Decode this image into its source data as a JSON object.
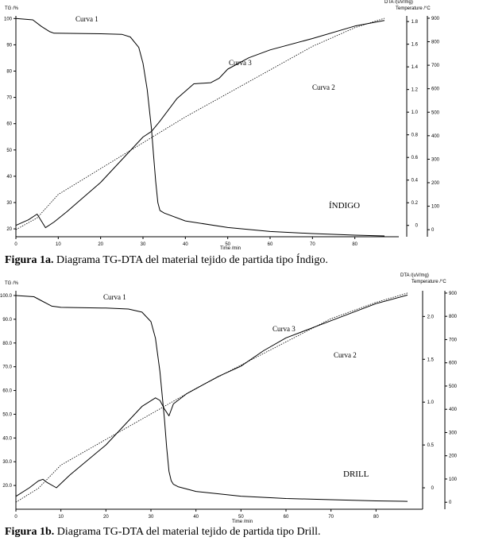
{
  "captions": [
    {
      "label": "Figura 1a.",
      "text": " Diagrama TG-DTA del material tejido de partida tipo Índigo."
    },
    {
      "label": "Figura 1b.",
      "text": " Diagrama TG-DTA del material tejido de partida tipo Drill."
    }
  ],
  "chart_data": [
    {
      "type": "line",
      "title": "",
      "xlabel": "Time /min",
      "ylabel_left": "TG /%",
      "ylabel_right1": "DTA /(uV/mg)",
      "ylabel_right2": "Temperature /°C",
      "xlim": [
        0,
        90
      ],
      "ylim_left": [
        17,
        101
      ],
      "ylim_right1": [
        -0.1,
        1.85
      ],
      "ylim_right2": [
        -30,
        910
      ],
      "x_ticks": [
        0,
        10,
        20,
        30,
        40,
        50,
        60,
        70,
        80
      ],
      "y_left_ticks": [
        "20",
        "30",
        "40",
        "50",
        "60",
        "70",
        "80",
        "90",
        "100"
      ],
      "y_right1_ticks": [
        "0",
        "0.2",
        "0.4",
        "0.6",
        "0.8",
        "1.0",
        "1.2",
        "1.4",
        "1.6",
        "1.8"
      ],
      "y_right2_ticks": [
        "0",
        "100",
        "200",
        "300",
        "400",
        "500",
        "600",
        "700",
        "800",
        "900"
      ],
      "annotation": "ÍNDIGO",
      "series": [
        {
          "name": "Curva 1",
          "axis": "left",
          "style": "solid",
          "x": [
            0,
            4,
            6,
            8,
            9,
            20,
            25,
            27,
            29,
            30,
            31,
            32,
            32.5,
            33,
            33.5,
            34,
            34.5,
            35,
            40,
            50,
            60,
            70,
            80,
            87
          ],
          "y": [
            100,
            99.5,
            97,
            95,
            94.4,
            94.2,
            94,
            93,
            89,
            83,
            73,
            58,
            48,
            38,
            30,
            27,
            26.5,
            26,
            23,
            20.5,
            19,
            18.2,
            17.6,
            17.3
          ]
        },
        {
          "name": "Curva 2",
          "axis": "right2",
          "style": "dotted",
          "x": [
            0,
            5,
            8,
            10,
            20,
            30,
            40,
            50,
            60,
            70,
            80,
            87
          ],
          "y": [
            0,
            50,
            110,
            150,
            260,
            370,
            480,
            580,
            680,
            780,
            860,
            900
          ]
        },
        {
          "name": "Curva 3",
          "axis": "right1",
          "style": "solid",
          "x": [
            0,
            3,
            5,
            7,
            9,
            12,
            20,
            30,
            32,
            34,
            38,
            42,
            46,
            48,
            50,
            55,
            60,
            70,
            80,
            87
          ],
          "y": [
            0,
            0.05,
            0.1,
            -0.02,
            0.03,
            0.12,
            0.38,
            0.78,
            0.83,
            0.92,
            1.12,
            1.25,
            1.26,
            1.3,
            1.38,
            1.48,
            1.55,
            1.65,
            1.76,
            1.81
          ]
        }
      ]
    },
    {
      "type": "line",
      "title": "",
      "xlabel": "Time /min",
      "ylabel_left": "TG /%",
      "ylabel_right1": "DTA /(uV/mg)",
      "ylabel_right2": "Temperature /°C",
      "xlim": [
        0,
        90
      ],
      "ylim_left": [
        10,
        102
      ],
      "ylim_right1": [
        -0.25,
        2.3
      ],
      "ylim_right2": [
        -30,
        910
      ],
      "x_ticks": [
        0,
        10,
        20,
        30,
        40,
        50,
        60,
        70,
        80
      ],
      "y_left_ticks": [
        "20.0",
        "30.0",
        "40.0",
        "50.0",
        "60.0",
        "70.0",
        "80.0",
        "90.0",
        "100.0"
      ],
      "y_right1_ticks": [
        "0",
        "0.5",
        "1.0",
        "1.5",
        "2.0"
      ],
      "y_right2_ticks": [
        "0",
        "100",
        "200",
        "300",
        "400",
        "500",
        "600",
        "700",
        "800",
        "900"
      ],
      "annotation": "DRILL",
      "series": [
        {
          "name": "Curva 1",
          "axis": "left",
          "style": "solid",
          "x": [
            0,
            4,
            6,
            8,
            10,
            20,
            25,
            28,
            30,
            31,
            32,
            33,
            33.5,
            34,
            34.5,
            35,
            36,
            40,
            50,
            60,
            70,
            80,
            87
          ],
          "y": [
            100,
            99.5,
            97.5,
            95.5,
            95,
            94.7,
            94.3,
            93,
            89,
            82,
            68,
            48,
            36,
            26,
            22,
            20.5,
            19.5,
            17.5,
            15.5,
            14.5,
            14,
            13.5,
            13.3
          ]
        },
        {
          "name": "Curva 2",
          "axis": "right2",
          "style": "dotted",
          "x": [
            0,
            5,
            8,
            10,
            20,
            30,
            40,
            50,
            60,
            70,
            80,
            87
          ],
          "y": [
            0,
            60,
            120,
            160,
            270,
            380,
            490,
            590,
            690,
            790,
            860,
            900
          ]
        },
        {
          "name": "Curva 3",
          "axis": "right1",
          "style": "solid",
          "x": [
            0,
            3,
            5,
            6,
            7,
            9,
            12,
            20,
            28,
            31,
            32,
            33,
            34,
            35,
            38,
            45,
            50,
            55,
            60,
            70,
            80,
            87
          ],
          "y": [
            -0.1,
            0,
            0.08,
            0.1,
            0.06,
            0,
            0.15,
            0.5,
            0.95,
            1.05,
            1.02,
            0.92,
            0.84,
            0.98,
            1.1,
            1.3,
            1.42,
            1.6,
            1.75,
            1.95,
            2.15,
            2.25
          ]
        }
      ]
    }
  ]
}
